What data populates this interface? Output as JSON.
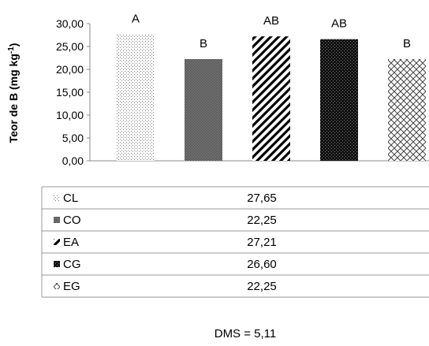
{
  "chart_data": {
    "type": "bar",
    "ylabel": "Teor de B (mg kg-1)",
    "ylabel_main": "Teor de B (mg kg",
    "ylabel_sup": "-1",
    "ylabel_close": ")",
    "ylim": [
      0,
      30
    ],
    "yticks": [
      "0,00",
      "5,00",
      "10,00",
      "15,00",
      "20,00",
      "25,00",
      "30,00"
    ],
    "categories": [
      "CL",
      "CO",
      "EA",
      "CG",
      "EG"
    ],
    "values": [
      27.65,
      22.25,
      27.21,
      26.6,
      22.25
    ],
    "value_labels": [
      "27,65",
      "22,25",
      "27,21",
      "26,60",
      "22,25"
    ],
    "significance_letters": [
      "A",
      "B",
      "AB",
      "AB",
      "B"
    ],
    "patterns": [
      "dots",
      "dense-dots",
      "diagonal-stripes",
      "checker",
      "crosshatch"
    ],
    "grid": false,
    "legend": "data-table-below",
    "annotation": "DMS = 5,11"
  }
}
